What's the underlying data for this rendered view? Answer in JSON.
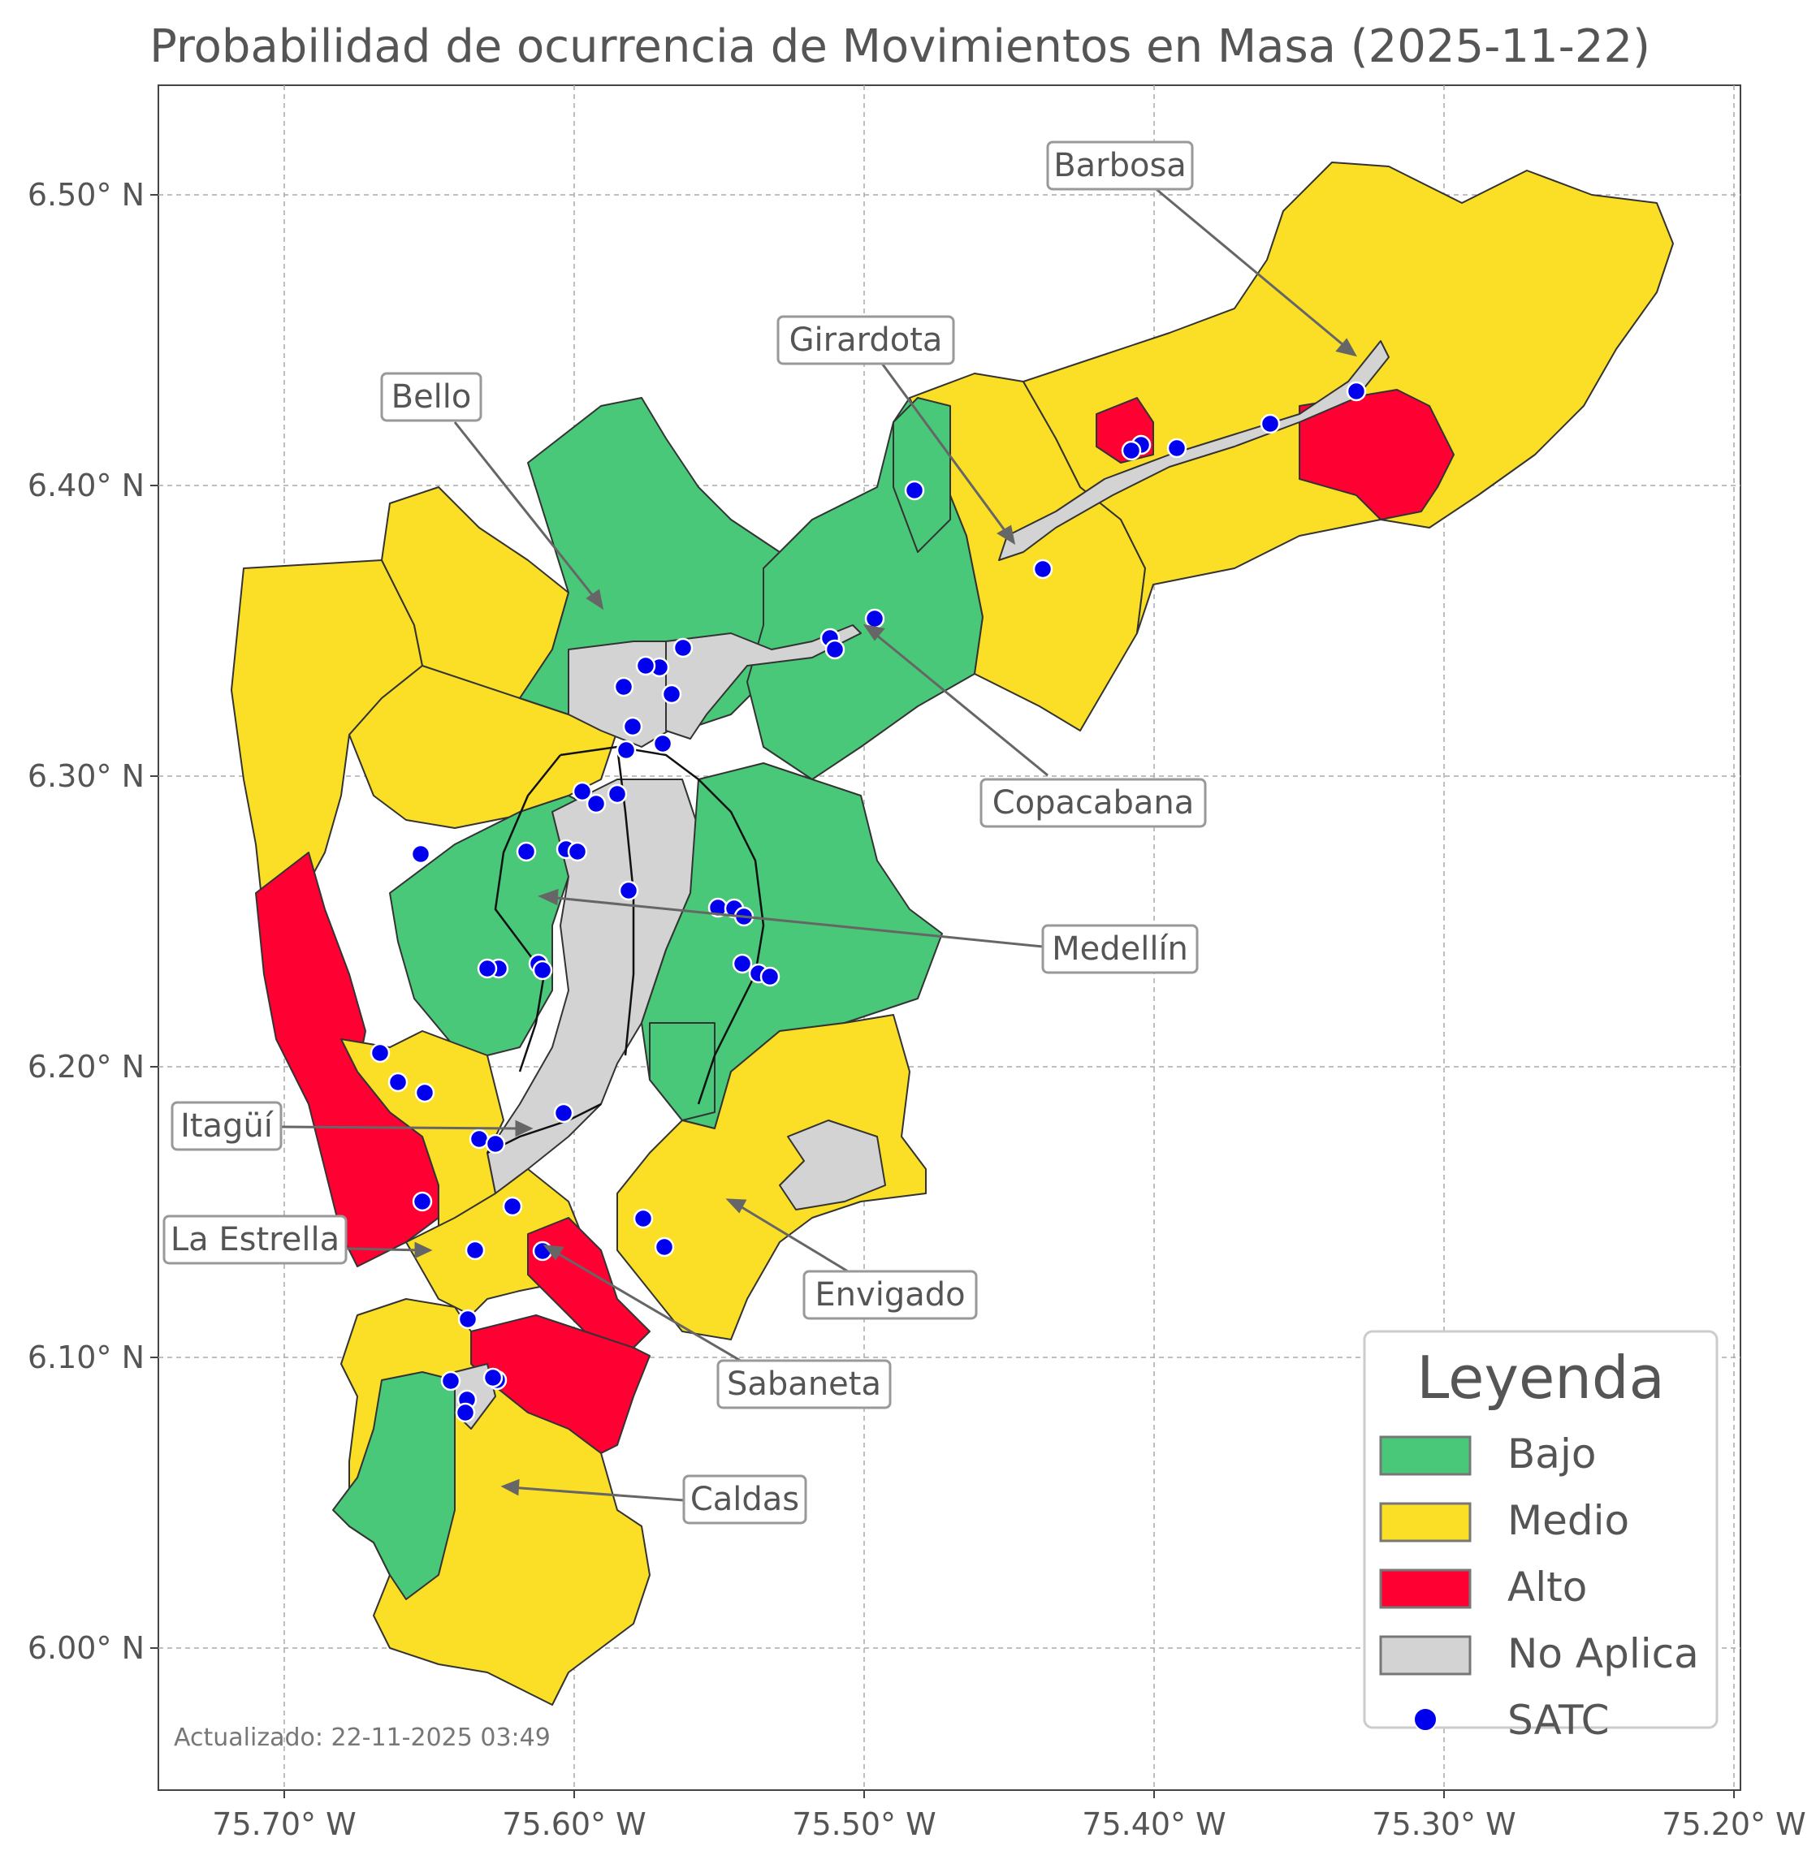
{
  "title": "Probabilidad de ocurrencia de Movimientos en Masa (2025-11-22)",
  "updated": "Actualizado: 22-11-2025 03:49",
  "colors": {
    "bajo": "#48c878",
    "medio": "#fbde26",
    "alto": "#ff0033",
    "no_aplica": "#d3d3d3",
    "satc": "#0000ee"
  },
  "axes": {
    "x_ticks": [
      "75.70° W",
      "75.60° W",
      "75.50° W",
      "75.40° W",
      "75.30° W",
      "75.20° W"
    ],
    "y_ticks": [
      "6.50° N",
      "6.40° N",
      "6.30° N",
      "6.20° N",
      "6.10° N",
      "6.00° N"
    ]
  },
  "municipalities": [
    {
      "name": "Barbosa"
    },
    {
      "name": "Girardota"
    },
    {
      "name": "Bello"
    },
    {
      "name": "Copacabana"
    },
    {
      "name": "Medellín"
    },
    {
      "name": "Itagüí"
    },
    {
      "name": "La Estrella"
    },
    {
      "name": "Envigado"
    },
    {
      "name": "Sabaneta"
    },
    {
      "name": "Caldas"
    }
  ],
  "legend": {
    "title": "Leyenda",
    "items": [
      {
        "label": "Bajo",
        "color": "#48c878",
        "kind": "patch"
      },
      {
        "label": "Medio",
        "color": "#fbde26",
        "kind": "patch"
      },
      {
        "label": "Alto",
        "color": "#ff0033",
        "kind": "patch"
      },
      {
        "label": "No Aplica",
        "color": "#d3d3d3",
        "kind": "patch"
      },
      {
        "label": "SATC",
        "color": "#0000ee",
        "kind": "dot"
      }
    ]
  }
}
